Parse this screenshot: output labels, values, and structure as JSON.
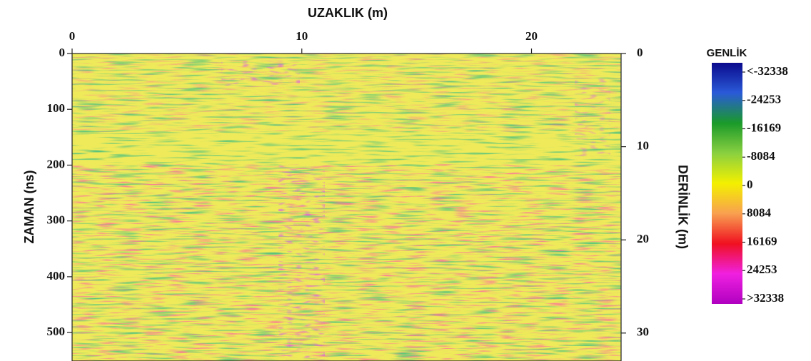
{
  "chart_data": {
    "type": "radargram",
    "xlabel": "UZAKLIK (m)",
    "ylabel": "ZAMAN  (ns)",
    "y2label": "DERİNLİK (m)",
    "xlim": [
      0,
      23.9
    ],
    "xticks": [
      0,
      10,
      20
    ],
    "ylim": [
      0,
      551
    ],
    "yticks": [
      0,
      100,
      200,
      300,
      400,
      500
    ],
    "y2lim": [
      0,
      33
    ],
    "y2ticks": [
      0,
      10,
      20,
      30
    ],
    "colorbar": {
      "title": "GENLİK",
      "clim": [
        -32338,
        32338
      ],
      "ticks": [
        {
          "value": -32338,
          "label": "<-32338"
        },
        -24253,
        -16169,
        -8084,
        0,
        8084,
        16169,
        24253,
        {
          "value": 32338,
          "label": ">32338"
        }
      ],
      "colors": [
        "#0a0a8c",
        "#2a5ad8",
        "#1a9a2a",
        "#8ad040",
        "#f4f000",
        "#f8a050",
        "#f01020",
        "#f020e0",
        "#b000c0"
      ]
    }
  }
}
